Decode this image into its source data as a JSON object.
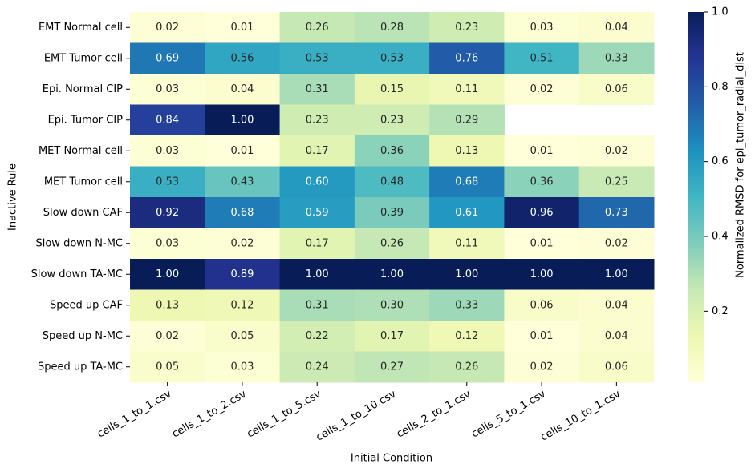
{
  "chart_data": {
    "type": "heatmap",
    "x_label": "Initial Condition",
    "y_label": "Inactive Rule",
    "colorbar_label": "Normalized RMSD for epi_tumor_radial_dist",
    "colormap": "YlGnBu",
    "columns": [
      "cells_1_to_1.csv",
      "cells_1_to_2.csv",
      "cells_1_to_5.csv",
      "cells_1_to_10.csv",
      "cells_2_to_1.csv",
      "cells_5_to_1.csv",
      "cells_10_to_1.csv"
    ],
    "rows": [
      "EMT Normal cell",
      "EMT Tumor cell",
      "Epi. Normal CIP",
      "Epi. Tumor CIP",
      "MET Normal cell",
      "MET Tumor cell",
      "Slow down CAF",
      "Slow down N-MC",
      "Slow down TA-MC",
      "Speed up CAF",
      "Speed up N-MC",
      "Speed up TA-MC"
    ],
    "values": [
      [
        0.02,
        0.01,
        0.26,
        0.28,
        0.23,
        0.03,
        0.04
      ],
      [
        0.69,
        0.56,
        0.53,
        0.53,
        0.76,
        0.51,
        0.33
      ],
      [
        0.03,
        0.04,
        0.31,
        0.15,
        0.11,
        0.02,
        0.06
      ],
      [
        0.84,
        1,
        0.23,
        0.23,
        0.29,
        null,
        null
      ],
      [
        0.03,
        0.01,
        0.17,
        0.36,
        0.13,
        0.01,
        0.02
      ],
      [
        0.53,
        0.43,
        0.6,
        0.48,
        0.68,
        0.36,
        0.25
      ],
      [
        0.92,
        0.68,
        0.59,
        0.39,
        0.61,
        0.96,
        0.73
      ],
      [
        0.03,
        0.02,
        0.17,
        0.26,
        0.11,
        0.01,
        0.02
      ],
      [
        1,
        0.89,
        1,
        1,
        1,
        1,
        1
      ],
      [
        0.13,
        0.12,
        0.31,
        0.3,
        0.33,
        0.06,
        0.04
      ],
      [
        0.02,
        0.05,
        0.22,
        0.17,
        0.12,
        0.01,
        0.04
      ],
      [
        0.05,
        0.03,
        0.24,
        0.27,
        0.26,
        0.02,
        0.06
      ]
    ],
    "value_labels": [
      [
        "0.02",
        "0.01",
        "0.26",
        "0.28",
        "0.23",
        "0.03",
        "0.04"
      ],
      [
        "0.69",
        "0.56",
        "0.53",
        "0.53",
        "0.76",
        "0.51",
        "0.33"
      ],
      [
        "0.03",
        "0.04",
        "0.31",
        "0.15",
        "0.11",
        "0.02",
        "0.06"
      ],
      [
        "0.84",
        "1.00",
        "0.23",
        "0.23",
        "0.29",
        null,
        null
      ],
      [
        "0.03",
        "0.01",
        "0.17",
        "0.36",
        "0.13",
        "0.01",
        "0.02"
      ],
      [
        "0.53",
        "0.43",
        "0.60",
        "0.48",
        "0.68",
        "0.36",
        "0.25"
      ],
      [
        "0.92",
        "0.68",
        "0.59",
        "0.39",
        "0.61",
        "0.96",
        "0.73"
      ],
      [
        "0.03",
        "0.02",
        "0.17",
        "0.26",
        "0.11",
        "0.01",
        "0.02"
      ],
      [
        "1.00",
        "0.89",
        "1.00",
        "1.00",
        "1.00",
        "1.00",
        "1.00"
      ],
      [
        "0.13",
        "0.12",
        "0.31",
        "0.30",
        "0.33",
        "0.06",
        "0.04"
      ],
      [
        "0.02",
        "0.05",
        "0.22",
        "0.17",
        "0.12",
        "0.01",
        "0.04"
      ],
      [
        "0.05",
        "0.03",
        "0.24",
        "0.27",
        "0.26",
        "0.02",
        "0.06"
      ]
    ],
    "clim": [
      0.01,
      1
    ],
    "cticks": [
      0.2,
      0.4,
      0.6,
      0.8,
      {
        "value": 1,
        "label": "1.0"
      }
    ]
  }
}
